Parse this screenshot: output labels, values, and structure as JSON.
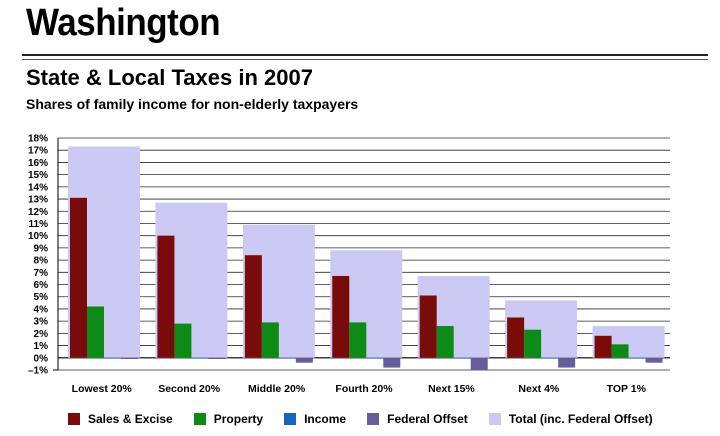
{
  "header": {
    "state": "Washington",
    "title": "State & Local Taxes in 2007",
    "subtitle": "Shares of family income for non-elderly taxpayers"
  },
  "colors": {
    "sales": "#7a0b0b",
    "property": "#0e8a16",
    "income": "#1565c0",
    "offset": "#675c9c",
    "total": "#ccc9f5"
  },
  "chart_data": {
    "type": "bar",
    "title": "State & Local Taxes in 2007",
    "subtitle": "Shares of family income for non-elderly taxpayers",
    "xlabel": "",
    "ylabel": "",
    "ylim": [
      -1,
      18
    ],
    "yticks": [
      -1,
      0,
      1,
      2,
      3,
      4,
      5,
      6,
      7,
      8,
      9,
      10,
      11,
      12,
      13,
      14,
      15,
      16,
      17,
      18
    ],
    "ytick_labels": [
      "–1%",
      "0%",
      "1%",
      "2%",
      "3%",
      "4%",
      "5%",
      "6%",
      "7%",
      "8%",
      "9%",
      "10%",
      "11%",
      "12%",
      "13%",
      "14%",
      "15%",
      "16%",
      "17%",
      "18%"
    ],
    "grid": true,
    "legend_position": "bottom",
    "categories": [
      "Lowest 20%",
      "Second 20%",
      "Middle 20%",
      "Fourth 20%",
      "Next 15%",
      "Next 4%",
      "TOP 1%"
    ],
    "series": [
      {
        "name": "Sales & Excise",
        "key": "sales",
        "values": [
          13.1,
          10.0,
          8.4,
          6.7,
          5.1,
          3.3,
          1.8
        ]
      },
      {
        "name": "Property",
        "key": "property",
        "values": [
          4.2,
          2.8,
          2.9,
          2.9,
          2.6,
          2.3,
          1.1
        ]
      },
      {
        "name": "Income",
        "key": "income",
        "values": [
          0,
          0,
          0,
          0,
          0,
          0,
          0
        ]
      },
      {
        "name": "Federal Offset",
        "key": "offset",
        "values": [
          -0.1,
          -0.1,
          -0.4,
          -0.8,
          -1.0,
          -0.8,
          -0.4
        ]
      },
      {
        "name": "Total (inc. Federal Offset)",
        "key": "total",
        "values": [
          17.3,
          12.7,
          10.9,
          8.8,
          6.7,
          4.7,
          2.6
        ]
      }
    ]
  }
}
